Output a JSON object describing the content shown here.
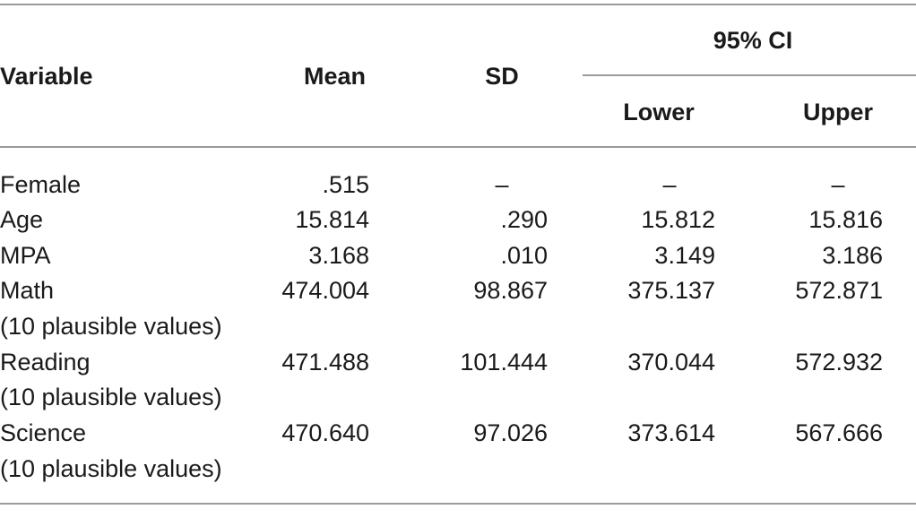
{
  "table": {
    "headers": {
      "variable": "Variable",
      "mean": "Mean",
      "sd": "SD",
      "ci": "95% CI",
      "lower": "Lower",
      "upper": "Upper"
    },
    "rows": [
      {
        "variable": "Female",
        "mean": ".515",
        "sd": "–",
        "lower": "–",
        "upper": "–"
      },
      {
        "variable": "Age",
        "mean": "15.814",
        "sd": ".290",
        "lower": "15.812",
        "upper": "15.816"
      },
      {
        "variable": "MPA",
        "mean": "3.168",
        "sd": ".010",
        "lower": "3.149",
        "upper": "3.186"
      },
      {
        "variable": "Math",
        "mean": "474.004",
        "sd": "98.867",
        "lower": "375.137",
        "upper": "572.871"
      },
      {
        "variable": "(10 plausible values)",
        "mean": "",
        "sd": "",
        "lower": "",
        "upper": ""
      },
      {
        "variable": "Reading",
        "mean": "471.488",
        "sd": "101.444",
        "lower": "370.044",
        "upper": "572.932"
      },
      {
        "variable": "(10 plausible values)",
        "mean": "",
        "sd": "",
        "lower": "",
        "upper": ""
      },
      {
        "variable": "Science",
        "mean": "470.640",
        "sd": "97.026",
        "lower": "373.614",
        "upper": "567.666"
      },
      {
        "variable": "(10 plausible values)",
        "mean": "",
        "sd": "",
        "lower": "",
        "upper": ""
      }
    ]
  }
}
